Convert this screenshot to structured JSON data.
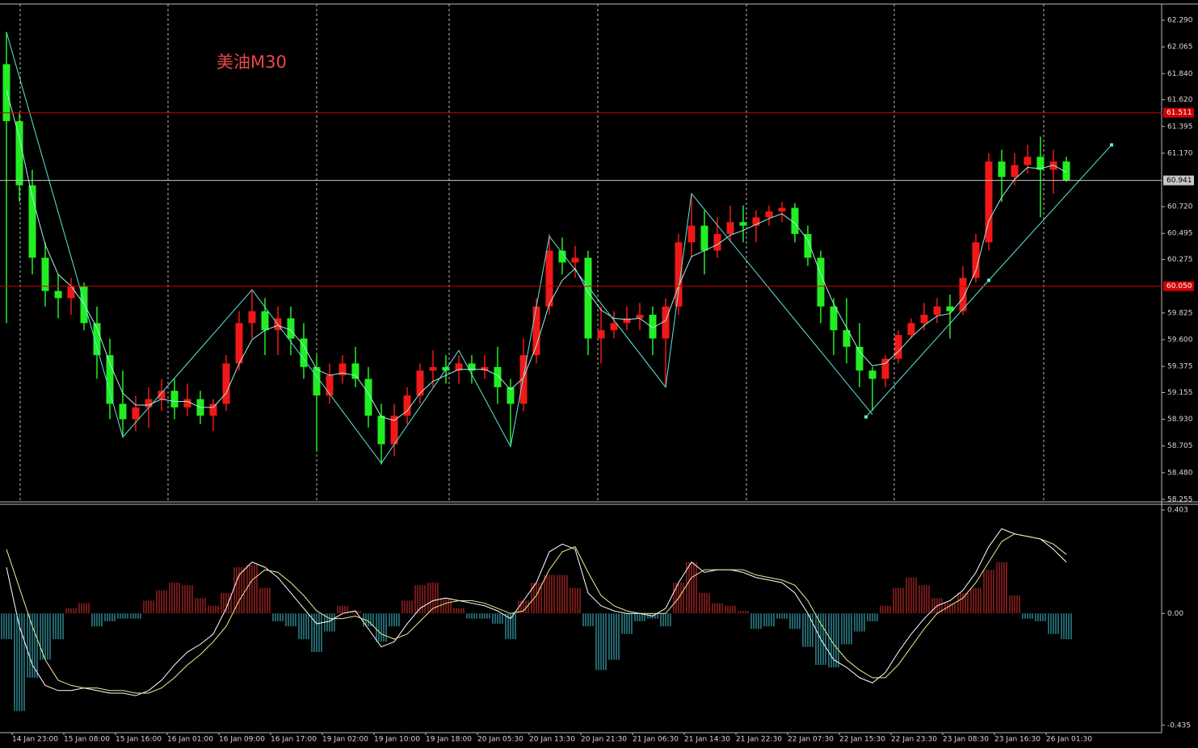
{
  "chart_data": [
    {
      "type": "candlestick",
      "title": "美油M30",
      "categories": [
        "14 Jan 23:00",
        null,
        null,
        null,
        "15 Jan 08:00",
        null,
        null,
        null,
        "15 Jan 16:00",
        null,
        null,
        null,
        "16 Jan 01:00",
        null,
        null,
        null,
        "16 Jan 09:00",
        null,
        null,
        null,
        "16 Jan 17:00",
        null,
        null,
        null,
        "19 Jan 02:00",
        null,
        null,
        null,
        "19 Jan 10:00",
        null,
        null,
        null,
        "19 Jan 18:00",
        null,
        null,
        null,
        "20 Jan 05:30",
        null,
        null,
        null,
        "20 Jan 13:30",
        null,
        null,
        null,
        "20 Jan 21:30",
        null,
        null,
        null,
        "21 Jan 06:30",
        null,
        null,
        null,
        "21 Jan 14:30",
        null,
        null,
        null,
        "21 Jan 22:30",
        null,
        null,
        null,
        "22 Jan 07:30",
        null,
        null,
        null,
        "22 Jan 15:30",
        null,
        null,
        null,
        "22 Jan 23:30",
        null,
        null,
        null,
        "23 Jan 08:30",
        null,
        null,
        null,
        "23 Jan 16:30",
        null,
        null,
        null,
        "26 Jan 01:30",
        null,
        null
      ],
      "ohlc": [
        [
          61.92,
          62.19,
          59.74,
          61.44
        ],
        [
          61.44,
          61.51,
          60.76,
          60.9
        ],
        [
          60.9,
          61.03,
          60.15,
          60.29
        ],
        [
          60.29,
          60.42,
          59.88,
          60.01
        ],
        [
          60.01,
          60.15,
          59.78,
          59.95
        ],
        [
          59.95,
          60.12,
          59.81,
          60.05
        ],
        [
          60.05,
          60.08,
          59.68,
          59.74
        ],
        [
          59.74,
          59.88,
          59.27,
          59.47
        ],
        [
          59.47,
          59.61,
          58.93,
          59.06
        ],
        [
          59.06,
          59.34,
          58.79,
          58.93
        ],
        [
          58.93,
          59.13,
          58.83,
          59.03
        ],
        [
          59.03,
          59.2,
          58.86,
          59.1
        ],
        [
          59.1,
          59.27,
          59.0,
          59.17
        ],
        [
          59.17,
          59.27,
          58.93,
          59.03
        ],
        [
          59.03,
          59.23,
          58.96,
          59.1
        ],
        [
          59.1,
          59.17,
          58.89,
          58.96
        ],
        [
          58.96,
          59.1,
          58.83,
          59.06
        ],
        [
          59.06,
          59.47,
          59.0,
          59.4
        ],
        [
          59.4,
          59.84,
          59.34,
          59.74
        ],
        [
          59.74,
          60.01,
          59.61,
          59.84
        ],
        [
          59.84,
          59.95,
          59.47,
          59.68
        ],
        [
          59.68,
          59.88,
          59.47,
          59.78
        ],
        [
          59.78,
          59.88,
          59.47,
          59.61
        ],
        [
          59.61,
          59.74,
          59.27,
          59.37
        ],
        [
          59.37,
          59.47,
          58.66,
          59.13
        ],
        [
          59.13,
          59.4,
          59.06,
          59.3
        ],
        [
          59.3,
          59.47,
          59.23,
          59.4
        ],
        [
          59.4,
          59.54,
          59.2,
          59.27
        ],
        [
          59.27,
          59.37,
          58.86,
          58.96
        ],
        [
          58.96,
          59.06,
          58.55,
          58.72
        ],
        [
          58.72,
          59.06,
          58.62,
          58.96
        ],
        [
          58.96,
          59.2,
          58.89,
          59.13
        ],
        [
          59.13,
          59.4,
          59.06,
          59.34
        ],
        [
          59.34,
          59.51,
          59.2,
          59.37
        ],
        [
          59.37,
          59.47,
          59.23,
          59.34
        ],
        [
          59.34,
          59.47,
          59.23,
          59.4
        ],
        [
          59.4,
          59.47,
          59.23,
          59.34
        ],
        [
          59.34,
          59.47,
          59.27,
          59.37
        ],
        [
          59.37,
          59.54,
          59.06,
          59.2
        ],
        [
          59.2,
          59.27,
          58.72,
          59.06
        ],
        [
          59.06,
          59.61,
          59.0,
          59.47
        ],
        [
          59.47,
          59.95,
          59.4,
          59.88
        ],
        [
          59.88,
          60.49,
          59.81,
          60.35
        ],
        [
          60.35,
          60.46,
          60.15,
          60.25
        ],
        [
          60.25,
          60.39,
          60.12,
          60.29
        ],
        [
          60.29,
          60.35,
          59.47,
          59.61
        ],
        [
          59.61,
          59.88,
          59.4,
          59.68
        ],
        [
          59.68,
          59.84,
          59.61,
          59.74
        ],
        [
          59.74,
          59.88,
          59.68,
          59.78
        ],
        [
          59.78,
          59.91,
          59.68,
          59.81
        ],
        [
          59.81,
          59.88,
          59.47,
          59.61
        ],
        [
          59.61,
          59.95,
          59.2,
          59.88
        ],
        [
          59.88,
          60.49,
          59.81,
          60.42
        ],
        [
          60.42,
          60.83,
          60.29,
          60.56
        ],
        [
          60.56,
          60.69,
          60.15,
          60.35
        ],
        [
          60.35,
          60.63,
          60.29,
          60.49
        ],
        [
          60.49,
          60.73,
          60.42,
          60.59
        ],
        [
          60.59,
          60.73,
          60.42,
          60.56
        ],
        [
          60.56,
          60.69,
          60.42,
          60.63
        ],
        [
          60.63,
          60.73,
          60.56,
          60.68
        ],
        [
          60.68,
          60.76,
          60.59,
          60.71
        ],
        [
          60.71,
          60.75,
          60.42,
          60.49
        ],
        [
          60.49,
          60.56,
          60.22,
          60.29
        ],
        [
          60.29,
          60.35,
          59.74,
          59.88
        ],
        [
          59.88,
          59.95,
          59.47,
          59.68
        ],
        [
          59.68,
          59.95,
          59.4,
          59.54
        ],
        [
          59.54,
          59.74,
          59.2,
          59.34
        ],
        [
          59.34,
          59.37,
          59.0,
          59.27
        ],
        [
          59.27,
          59.47,
          59.2,
          59.44
        ],
        [
          59.44,
          59.68,
          59.4,
          59.64
        ],
        [
          59.64,
          59.78,
          59.61,
          59.74
        ],
        [
          59.74,
          59.91,
          59.68,
          59.81
        ],
        [
          59.81,
          59.95,
          59.74,
          59.88
        ],
        [
          59.88,
          59.98,
          59.61,
          59.84
        ],
        [
          59.84,
          60.22,
          59.81,
          60.12
        ],
        [
          60.12,
          60.49,
          60.08,
          60.42
        ],
        [
          60.42,
          61.17,
          60.35,
          61.1
        ],
        [
          61.1,
          61.2,
          60.76,
          60.97
        ],
        [
          60.97,
          61.17,
          60.9,
          61.07
        ],
        [
          61.07,
          61.24,
          61.0,
          61.14
        ],
        [
          61.14,
          61.31,
          60.63,
          61.03
        ],
        [
          61.03,
          61.2,
          60.83,
          61.1
        ],
        [
          61.1,
          61.14,
          60.93,
          60.94
        ]
      ],
      "up_color": "#f01818",
      "down_color": "#22ee22",
      "ma": {
        "color": "#9ff5e6",
        "values": [
          61.7,
          61.3,
          60.8,
          60.4,
          60.15,
          60.05,
          59.9,
          59.7,
          59.4,
          59.15,
          59.05,
          59.05,
          59.1,
          59.08,
          59.08,
          59.03,
          59.03,
          59.15,
          59.4,
          59.6,
          59.68,
          59.72,
          59.68,
          59.55,
          59.35,
          59.3,
          59.32,
          59.3,
          59.15,
          58.95,
          58.92,
          59.0,
          59.15,
          59.25,
          59.3,
          59.35,
          59.35,
          59.35,
          59.3,
          59.18,
          59.28,
          59.55,
          59.9,
          60.1,
          60.2,
          60.0,
          59.85,
          59.78,
          59.77,
          59.78,
          59.7,
          59.76,
          60.05,
          60.3,
          60.35,
          60.4,
          60.48,
          60.52,
          60.57,
          60.62,
          60.66,
          60.58,
          60.44,
          60.15,
          59.9,
          59.7,
          59.5,
          59.38,
          59.4,
          59.5,
          59.62,
          59.72,
          59.8,
          59.82,
          59.95,
          60.18,
          60.6,
          60.8,
          60.95,
          61.05,
          61.04,
          61.07,
          61.01
        ]
      },
      "zigzag": {
        "color": "#5fe8dc",
        "x": [
          0,
          9,
          19,
          29,
          35,
          39,
          42,
          51,
          53,
          67
        ],
        "values": [
          62.19,
          58.78,
          60.02,
          58.56,
          59.51,
          58.7,
          60.47,
          59.2,
          60.83,
          58.97
        ]
      },
      "trendline": {
        "color": "#5fe8dc",
        "x": [
          66.5,
          76,
          85.5
        ],
        "values": [
          58.95,
          60.1,
          61.24
        ]
      },
      "levels": [
        {
          "value": 61.511,
          "color": "#d00000"
        },
        {
          "value": 60.05,
          "label": "60.050",
          "color": "#d00000"
        },
        {
          "value": 60.941,
          "color": "#c8c8c8"
        }
      ],
      "ylim": [
        58.248,
        62.426
      ],
      "yticks": [
        {
          "value": 62.29,
          "label": "62.290"
        },
        62.065,
        {
          "value": 61.84,
          "label": "61.840"
        },
        {
          "value": 61.62,
          "label": "61.620"
        },
        61.395,
        {
          "value": 61.17,
          "label": "61.170"
        },
        {
          "value": 60.72,
          "label": "60.720"
        },
        60.495,
        60.275,
        59.825,
        {
          "value": 59.6,
          "label": "59.600"
        },
        59.375,
        59.155,
        {
          "value": 58.93,
          "label": "58.930"
        },
        58.705,
        {
          "value": 58.48,
          "label": "58.480"
        },
        58.255
      ]
    },
    {
      "type": "macd",
      "ylim": [
        -0.464,
        0.425
      ],
      "yticks": [
        0.403,
        {
          "value": 0,
          "label": "0.00"
        },
        -0.435
      ],
      "histogram": {
        "up_color": "#e03030",
        "down_color": "#45c8d8",
        "values": [
          -0.1,
          -0.38,
          -0.25,
          -0.18,
          -0.1,
          0.02,
          0.04,
          -0.05,
          -0.03,
          -0.02,
          -0.02,
          0.05,
          0.09,
          0.12,
          0.11,
          0.06,
          0.03,
          0.08,
          0.18,
          0.19,
          0.1,
          -0.03,
          -0.05,
          -0.1,
          -0.15,
          -0.07,
          0.03,
          0.01,
          -0.05,
          -0.11,
          -0.05,
          0.05,
          0.11,
          0.12,
          0.06,
          0.02,
          -0.02,
          -0.02,
          -0.04,
          -0.1,
          0.05,
          0.12,
          0.15,
          0.15,
          0.1,
          -0.05,
          -0.22,
          -0.18,
          -0.08,
          -0.03,
          -0.02,
          -0.05,
          0.12,
          0.2,
          0.08,
          0.04,
          0.03,
          0.01,
          -0.06,
          -0.05,
          -0.02,
          -0.06,
          -0.13,
          -0.2,
          -0.21,
          -0.12,
          -0.07,
          -0.03,
          0.03,
          0.1,
          0.14,
          0.11,
          0.06,
          0.04,
          0.08,
          0.1,
          0.17,
          0.2,
          0.07,
          -0.02,
          -0.03,
          -0.08,
          -0.1
        ]
      },
      "series": [
        {
          "color": "#ffffff",
          "values": [
            0.18,
            -0.05,
            -0.2,
            -0.28,
            -0.3,
            -0.3,
            -0.29,
            -0.3,
            -0.31,
            -0.31,
            -0.32,
            -0.3,
            -0.26,
            -0.2,
            -0.15,
            -0.12,
            -0.08,
            0.02,
            0.15,
            0.2,
            0.18,
            0.14,
            0.08,
            0.02,
            -0.04,
            -0.03,
            0.0,
            0.01,
            -0.06,
            -0.13,
            -0.11,
            -0.04,
            0.02,
            0.05,
            0.06,
            0.05,
            0.04,
            0.03,
            0.01,
            -0.02,
            0.05,
            0.12,
            0.24,
            0.27,
            0.25,
            0.08,
            0.03,
            0.01,
            0.0,
            0.0,
            -0.01,
            0.02,
            0.12,
            0.2,
            0.16,
            0.17,
            0.17,
            0.16,
            0.14,
            0.13,
            0.12,
            0.08,
            0.0,
            -0.1,
            -0.18,
            -0.21,
            -0.25,
            -0.27,
            -0.23,
            -0.15,
            -0.08,
            -0.02,
            0.03,
            0.05,
            0.09,
            0.16,
            0.26,
            0.33,
            0.31,
            0.3,
            0.29,
            0.25,
            0.2
          ]
        },
        {
          "color": "#eeee99",
          "values": [
            0.25,
            0.1,
            -0.05,
            -0.18,
            -0.26,
            -0.28,
            -0.29,
            -0.29,
            -0.3,
            -0.3,
            -0.31,
            -0.31,
            -0.29,
            -0.25,
            -0.2,
            -0.16,
            -0.11,
            -0.05,
            0.05,
            0.13,
            0.17,
            0.16,
            0.12,
            0.07,
            0.01,
            -0.02,
            -0.02,
            -0.01,
            -0.03,
            -0.08,
            -0.1,
            -0.08,
            -0.03,
            0.02,
            0.04,
            0.05,
            0.05,
            0.04,
            0.02,
            0.0,
            0.01,
            0.07,
            0.17,
            0.24,
            0.26,
            0.16,
            0.07,
            0.03,
            0.01,
            0.0,
            0.0,
            0.0,
            0.06,
            0.14,
            0.17,
            0.17,
            0.17,
            0.17,
            0.15,
            0.14,
            0.13,
            0.11,
            0.05,
            -0.04,
            -0.12,
            -0.18,
            -0.22,
            -0.25,
            -0.25,
            -0.2,
            -0.13,
            -0.06,
            0.0,
            0.03,
            0.06,
            0.12,
            0.2,
            0.28,
            0.31,
            0.3,
            0.29,
            0.27,
            0.23
          ]
        }
      ]
    }
  ]
}
